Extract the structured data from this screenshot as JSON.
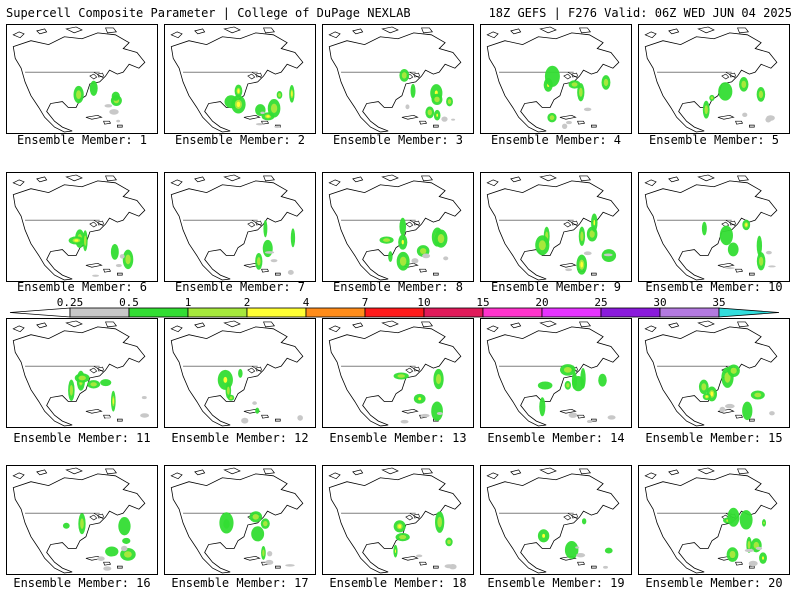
{
  "header": {
    "left": "Supercell Composite Parameter | College of DuPage NEXLAB",
    "right": "18Z GEFS | F276 Valid: 06Z WED JUN 04 2025"
  },
  "member_label": "Ensemble Member: ",
  "members": [
    1,
    2,
    3,
    4,
    5,
    6,
    7,
    8,
    9,
    10,
    11,
    12,
    13,
    14,
    15,
    16,
    17,
    18,
    19,
    20
  ],
  "colorbar": {
    "ticks": [
      "0.25",
      "0.5",
      "1",
      "2",
      "4",
      "7",
      "10",
      "15",
      "20",
      "25",
      "30",
      "35"
    ],
    "colors": [
      "#c8c8c8",
      "#33dd33",
      "#a6e83c",
      "#ffff33",
      "#ff8c1a",
      "#ff1a1a",
      "#e01a5a",
      "#ff33cc",
      "#e633ff",
      "#8a1adb",
      "#b37ae0",
      "#33dddd"
    ]
  },
  "colors": {
    "coast": "#000000",
    "ocean": "#ffffff"
  }
}
